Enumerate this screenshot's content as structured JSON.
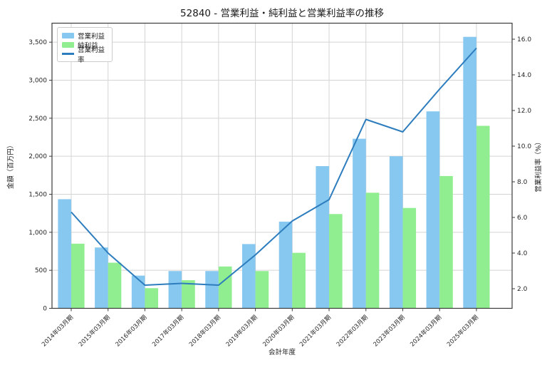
{
  "title": "52840 - 営業利益・純利益と営業利益率の推移",
  "chart_data": {
    "type": "bar+line",
    "categories": [
      "2014年03月期",
      "2015年03月期",
      "2016年03月期",
      "2017年03月期",
      "2018年03月期",
      "2019年03月期",
      "2020年03月期",
      "2021年03月期",
      "2022年03月期",
      "2023年03月期",
      "2024年03月期",
      "2025年03月期"
    ],
    "series": [
      {
        "name": "営業利益",
        "type": "bar",
        "axis": "left",
        "color": "#87c8f0",
        "values": [
          1435,
          800,
          430,
          490,
          490,
          845,
          1140,
          1870,
          2230,
          2000,
          2590,
          3570
        ]
      },
      {
        "name": "純利益",
        "type": "bar",
        "axis": "left",
        "color": "#90ee90",
        "values": [
          850,
          600,
          265,
          370,
          550,
          490,
          730,
          1240,
          1520,
          1320,
          1740,
          2400
        ]
      },
      {
        "name": "営業利益率",
        "type": "line",
        "axis": "right",
        "color": "#2d7dbe",
        "values": [
          6.3,
          4.0,
          2.2,
          2.3,
          2.2,
          3.9,
          5.8,
          7.0,
          11.5,
          10.8,
          13.2,
          15.5
        ]
      }
    ],
    "xlabel": "会計年度",
    "ylabel_left": "金額（百万円）",
    "ylabel_right": "営業利益率（%）",
    "yticks_left": [
      "0",
      "500",
      "1,000",
      "1,500",
      "2,000",
      "2,500",
      "3,000",
      "3,500"
    ],
    "yticks_right": [
      "2.0",
      "4.0",
      "6.0",
      "8.0",
      "10.0",
      "12.0",
      "14.0",
      "16.0"
    ],
    "ylim_left": [
      0,
      3750
    ],
    "ylim_right": [
      0.9,
      16.9
    ],
    "grid": "on",
    "legend_position": "upper left",
    "colors": {
      "grid": "#d4d4d4",
      "spine": "#3a3a3a",
      "tick_text": "#262626",
      "background": "#ffffff"
    }
  }
}
